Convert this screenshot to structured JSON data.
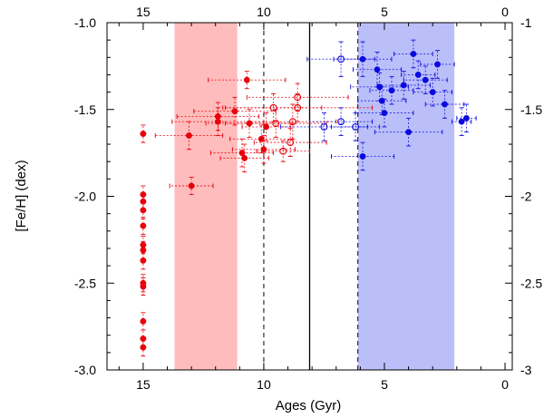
{
  "chart_data": {
    "type": "scatter",
    "title": "",
    "xlabel": "Ages (Gyr)",
    "ylabel": "[Fe/H] (dex)",
    "xlim": [
      16.5,
      -0.3
    ],
    "ylim": [
      -3.0,
      -1.0
    ],
    "x_ticks": [
      {
        "value": 15,
        "label": "15"
      },
      {
        "value": 10,
        "label": "10"
      },
      {
        "value": 5,
        "label": "5"
      },
      {
        "value": 0,
        "label": "0"
      }
    ],
    "x_ticks_top": [
      {
        "value": 15,
        "label": "15"
      },
      {
        "value": 10,
        "label": "10"
      },
      {
        "value": 5,
        "label": "5"
      },
      {
        "value": 0,
        "label": "0"
      }
    ],
    "y_ticks_left": [
      {
        "value": -1.0,
        "label": "-1.0"
      },
      {
        "value": -1.5,
        "label": "-1.5"
      },
      {
        "value": -2.0,
        "label": "-2.0"
      },
      {
        "value": -2.5,
        "label": "-2.5"
      },
      {
        "value": -3.0,
        "label": "-3.0"
      }
    ],
    "y_ticks_right": [
      {
        "value": -1.0,
        "label": "-1"
      },
      {
        "value": -1.5,
        "label": "-1.5"
      },
      {
        "value": -2.0,
        "label": "-2"
      },
      {
        "value": -2.5,
        "label": "-2.5"
      },
      {
        "value": -3.0,
        "label": "-3"
      }
    ],
    "grid": false,
    "shaded_bands": [
      {
        "x_from": 13.7,
        "x_to": 11.1,
        "color": "#ffbcbc"
      },
      {
        "x_from": 6.1,
        "x_to": 2.1,
        "color": "#bbbff9"
      }
    ],
    "vertical_lines": [
      {
        "x": 10.0,
        "style": "dashed"
      },
      {
        "x": 8.1,
        "style": "solid"
      },
      {
        "x": 6.1,
        "style": "dashed"
      }
    ],
    "colors": {
      "red": "#e8000b",
      "blue": "#0a0adf"
    },
    "series": [
      {
        "color_key": "red",
        "points": [
          {
            "x": 15.0,
            "y": -1.64,
            "xerr": 0.0,
            "yerr": 0.05,
            "filled": true
          },
          {
            "x": 15.0,
            "y": -1.99,
            "xerr": 0.0,
            "yerr": 0.05,
            "filled": true
          },
          {
            "x": 15.0,
            "y": -2.03,
            "xerr": 0.0,
            "yerr": 0.05,
            "filled": true
          },
          {
            "x": 15.0,
            "y": -2.08,
            "xerr": 0.0,
            "yerr": 0.05,
            "filled": true
          },
          {
            "x": 15.0,
            "y": -2.17,
            "xerr": 0.0,
            "yerr": 0.05,
            "filled": true
          },
          {
            "x": 15.0,
            "y": -2.28,
            "xerr": 0.0,
            "yerr": 0.05,
            "filled": true
          },
          {
            "x": 15.0,
            "y": -2.31,
            "xerr": 0.0,
            "yerr": 0.05,
            "filled": true
          },
          {
            "x": 15.0,
            "y": -2.37,
            "xerr": 0.0,
            "yerr": 0.05,
            "filled": true
          },
          {
            "x": 15.0,
            "y": -2.5,
            "xerr": 0.0,
            "yerr": 0.05,
            "filled": true
          },
          {
            "x": 15.0,
            "y": -2.52,
            "xerr": 0.0,
            "yerr": 0.05,
            "filled": true
          },
          {
            "x": 15.0,
            "y": -2.72,
            "xerr": 0.0,
            "yerr": 0.05,
            "filled": true
          },
          {
            "x": 15.0,
            "y": -2.82,
            "xerr": 0.0,
            "yerr": 0.05,
            "filled": true
          },
          {
            "x": 15.0,
            "y": -2.87,
            "xerr": 0.0,
            "yerr": 0.05,
            "filled": true
          },
          {
            "x": 13.1,
            "y": -1.65,
            "xerr": 1.4,
            "yerr": 0.08,
            "filled": true
          },
          {
            "x": 13.0,
            "y": -1.94,
            "xerr": 0.9,
            "yerr": 0.05,
            "filled": true
          },
          {
            "x": 11.9,
            "y": -1.54,
            "xerr": 1.7,
            "yerr": 0.08,
            "filled": true
          },
          {
            "x": 11.9,
            "y": -1.57,
            "xerr": 1.9,
            "yerr": 0.08,
            "filled": true
          },
          {
            "x": 11.2,
            "y": -1.51,
            "xerr": 1.7,
            "yerr": 0.08,
            "filled": true
          },
          {
            "x": 10.9,
            "y": -1.75,
            "xerr": 1.3,
            "yerr": 0.08,
            "filled": true
          },
          {
            "x": 10.8,
            "y": -1.78,
            "xerr": 1.0,
            "yerr": 0.08,
            "filled": true
          },
          {
            "x": 10.7,
            "y": -1.33,
            "xerr": 1.6,
            "yerr": 0.05,
            "filled": true
          },
          {
            "x": 10.6,
            "y": -1.58,
            "xerr": 1.8,
            "yerr": 0.08,
            "filled": true
          },
          {
            "x": 10.1,
            "y": -1.67,
            "xerr": 1.3,
            "yerr": 0.08,
            "filled": true
          },
          {
            "x": 10.0,
            "y": -1.73,
            "xerr": 1.3,
            "yerr": 0.08,
            "filled": true
          },
          {
            "x": 9.9,
            "y": -1.6,
            "xerr": 1.0,
            "yerr": 0.08,
            "filled": true
          },
          {
            "x": 9.6,
            "y": -1.49,
            "xerr": 2.0,
            "yerr": 0.08,
            "filled": false
          },
          {
            "x": 9.5,
            "y": -1.58,
            "xerr": 2.1,
            "yerr": 0.08,
            "filled": false
          },
          {
            "x": 9.2,
            "y": -1.74,
            "xerr": 1.1,
            "yerr": 0.06,
            "filled": false
          },
          {
            "x": 8.9,
            "y": -1.69,
            "xerr": 1.5,
            "yerr": 0.08,
            "filled": false
          },
          {
            "x": 8.8,
            "y": -1.57,
            "xerr": 1.8,
            "yerr": 0.1,
            "filled": false
          },
          {
            "x": 8.6,
            "y": -1.49,
            "xerr": 3.1,
            "yerr": 0.08,
            "filled": false
          },
          {
            "x": 8.6,
            "y": -1.43,
            "xerr": 2.1,
            "yerr": 0.08,
            "filled": false
          }
        ]
      },
      {
        "color_key": "blue",
        "points": [
          {
            "x": 6.8,
            "y": -1.21,
            "xerr": 1.4,
            "yerr": 0.1,
            "filled": false
          },
          {
            "x": 6.8,
            "y": -1.57,
            "xerr": 1.3,
            "yerr": 0.08,
            "filled": false
          },
          {
            "x": 7.5,
            "y": -1.6,
            "xerr": 1.8,
            "yerr": 0.08,
            "filled": false
          },
          {
            "x": 6.2,
            "y": -1.6,
            "xerr": 1.0,
            "yerr": 0.08,
            "filled": false
          },
          {
            "x": 5.9,
            "y": -1.21,
            "xerr": 1.2,
            "yerr": 0.1,
            "filled": true
          },
          {
            "x": 5.9,
            "y": -1.77,
            "xerr": 1.3,
            "yerr": 0.08,
            "filled": true
          },
          {
            "x": 5.3,
            "y": -1.27,
            "xerr": 1.0,
            "yerr": 0.1,
            "filled": true
          },
          {
            "x": 5.2,
            "y": -1.37,
            "xerr": 1.2,
            "yerr": 0.08,
            "filled": true
          },
          {
            "x": 5.1,
            "y": -1.45,
            "xerr": 1.0,
            "yerr": 0.08,
            "filled": true
          },
          {
            "x": 5.0,
            "y": -1.52,
            "xerr": 1.2,
            "yerr": 0.08,
            "filled": true
          },
          {
            "x": 4.7,
            "y": -1.39,
            "xerr": 0.9,
            "yerr": 0.08,
            "filled": true
          },
          {
            "x": 4.2,
            "y": -1.36,
            "xerr": 1.1,
            "yerr": 0.08,
            "filled": true
          },
          {
            "x": 4.0,
            "y": -1.63,
            "xerr": 1.4,
            "yerr": 0.08,
            "filled": true
          },
          {
            "x": 3.8,
            "y": -1.18,
            "xerr": 0.8,
            "yerr": 0.08,
            "filled": true
          },
          {
            "x": 3.6,
            "y": -1.3,
            "xerr": 0.7,
            "yerr": 0.08,
            "filled": true
          },
          {
            "x": 3.3,
            "y": -1.33,
            "xerr": 0.9,
            "yerr": 0.08,
            "filled": true
          },
          {
            "x": 3.0,
            "y": -1.4,
            "xerr": 0.8,
            "yerr": 0.08,
            "filled": true
          },
          {
            "x": 2.8,
            "y": -1.24,
            "xerr": 0.7,
            "yerr": 0.08,
            "filled": true
          },
          {
            "x": 2.5,
            "y": -1.47,
            "xerr": 0.8,
            "yerr": 0.08,
            "filled": true
          },
          {
            "x": 1.8,
            "y": -1.57,
            "xerr": 0.4,
            "yerr": 0.08,
            "filled": true
          },
          {
            "x": 1.6,
            "y": -1.55,
            "xerr": 0.4,
            "yerr": 0.08,
            "filled": true
          }
        ]
      }
    ]
  }
}
